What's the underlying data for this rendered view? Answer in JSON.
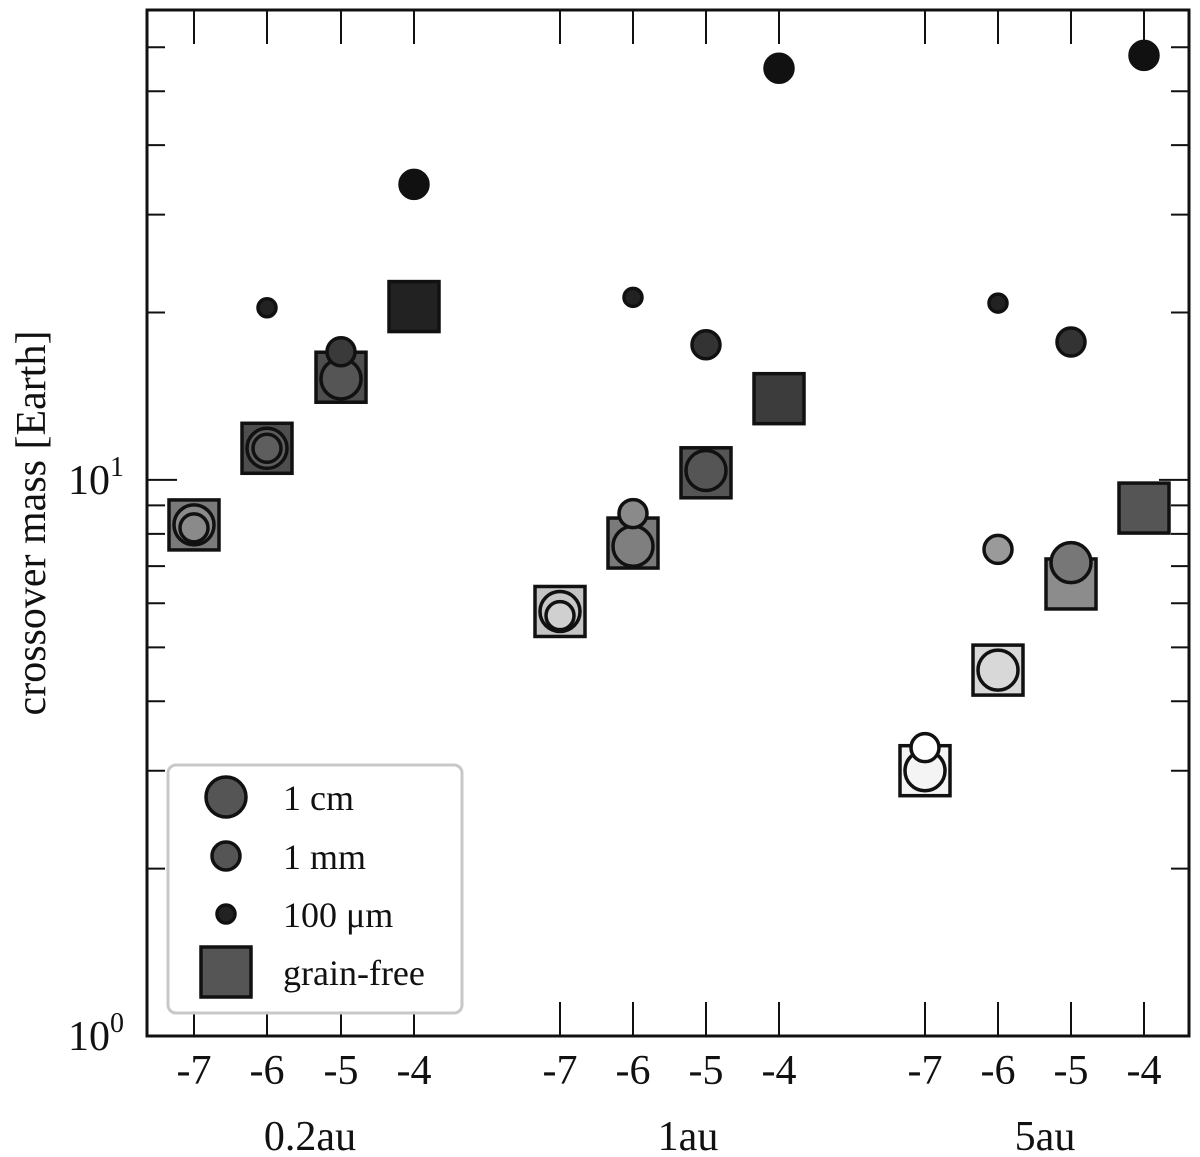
{
  "chart_data": {
    "type": "scatter",
    "ylabel": "crossover mass [Earth]",
    "yscale": "log",
    "ylim": [
      1,
      70
    ],
    "ytick_labels": [
      {
        "value": 1,
        "base": "10",
        "exp": "0"
      },
      {
        "value": 10,
        "base": "10",
        "exp": "1"
      }
    ],
    "groups": [
      {
        "label": "0.2au",
        "x_ticks": [
          "-7",
          "-6",
          "-5",
          "-4"
        ]
      },
      {
        "label": "1au",
        "x_ticks": [
          "-7",
          "-6",
          "-5",
          "-4"
        ]
      },
      {
        "label": "5au",
        "x_ticks": [
          "-7",
          "-6",
          "-5",
          "-4"
        ]
      }
    ],
    "legend": [
      {
        "key": "cm",
        "label": "1 cm",
        "marker": "circle-large"
      },
      {
        "key": "mm",
        "label": "1 mm",
        "marker": "circle-medium"
      },
      {
        "key": "um",
        "label": "100 μm",
        "marker": "circle-small"
      },
      {
        "key": "gf",
        "label": "grain-free",
        "marker": "square"
      }
    ],
    "series": [
      {
        "name": "1 cm",
        "key": "cm",
        "points": [
          {
            "group": 0,
            "x": -7,
            "y": 8.3,
            "color": "#8a8a8a"
          },
          {
            "group": 0,
            "x": -6,
            "y": 11.4,
            "color": "#5e5e5e"
          },
          {
            "group": 0,
            "x": -5,
            "y": 15.2,
            "color": "#555555"
          },
          {
            "group": 1,
            "x": -7,
            "y": 5.8,
            "color": "#c8c8c8"
          },
          {
            "group": 1,
            "x": -6,
            "y": 7.6,
            "color": "#7f7f7f"
          },
          {
            "group": 1,
            "x": -5,
            "y": 10.4,
            "color": "#555555"
          },
          {
            "group": 2,
            "x": -7,
            "y": 3.0,
            "color": "#f4f4f4"
          },
          {
            "group": 2,
            "x": -6,
            "y": 4.55,
            "color": "#d8d8d8"
          },
          {
            "group": 2,
            "x": -5,
            "y": 7.1,
            "color": "#777777"
          }
        ]
      },
      {
        "name": "1 mm",
        "key": "mm",
        "points": [
          {
            "group": 0,
            "x": -7,
            "y": 8.2,
            "color": "#8a8a8a"
          },
          {
            "group": 0,
            "x": -6,
            "y": 11.4,
            "color": "#5e5e5e"
          },
          {
            "group": 0,
            "x": -5,
            "y": 17.0,
            "color": "#3a3a3a"
          },
          {
            "group": 0,
            "x": -4,
            "y": 34.0,
            "color": "#111111"
          },
          {
            "group": 1,
            "x": -7,
            "y": 5.7,
            "color": "#d0d0d0"
          },
          {
            "group": 1,
            "x": -6,
            "y": 8.7,
            "color": "#8a8a8a"
          },
          {
            "group": 1,
            "x": -5,
            "y": 17.5,
            "color": "#333333"
          },
          {
            "group": 1,
            "x": -4,
            "y": 55.0,
            "color": "#111111"
          },
          {
            "group": 2,
            "x": -7,
            "y": 3.3,
            "color": "#ffffff"
          },
          {
            "group": 2,
            "x": -6,
            "y": 7.5,
            "color": "#9a9a9a"
          },
          {
            "group": 2,
            "x": -5,
            "y": 17.7,
            "color": "#333333"
          },
          {
            "group": 2,
            "x": -4,
            "y": 58.0,
            "color": "#111111"
          }
        ]
      },
      {
        "name": "100 μm",
        "key": "um",
        "points": [
          {
            "group": 0,
            "x": -6,
            "y": 20.4,
            "color": "#222222"
          },
          {
            "group": 1,
            "x": -6,
            "y": 21.3,
            "color": "#222222"
          },
          {
            "group": 2,
            "x": -6,
            "y": 20.8,
            "color": "#222222"
          }
        ]
      },
      {
        "name": "grain-free",
        "key": "gf",
        "points": [
          {
            "group": 0,
            "x": -7,
            "y": 8.3,
            "color": "#7a7a7a"
          },
          {
            "group": 0,
            "x": -6,
            "y": 11.4,
            "color": "#4e4e4e"
          },
          {
            "group": 0,
            "x": -5,
            "y": 15.3,
            "color": "#4e4e4e"
          },
          {
            "group": 0,
            "x": -4,
            "y": 20.5,
            "color": "#222222"
          },
          {
            "group": 1,
            "x": -7,
            "y": 5.8,
            "color": "#c4c4c4"
          },
          {
            "group": 1,
            "x": -6,
            "y": 7.7,
            "color": "#7a7a7a"
          },
          {
            "group": 1,
            "x": -5,
            "y": 10.3,
            "color": "#555555"
          },
          {
            "group": 1,
            "x": -4,
            "y": 14.0,
            "color": "#3c3c3c"
          },
          {
            "group": 2,
            "x": -7,
            "y": 3.0,
            "color": "#f4f4f4"
          },
          {
            "group": 2,
            "x": -6,
            "y": 4.55,
            "color": "#d8d8d8"
          },
          {
            "group": 2,
            "x": -5,
            "y": 6.5,
            "color": "#8c8c8c"
          },
          {
            "group": 2,
            "x": -4,
            "y": 8.9,
            "color": "#555555"
          }
        ]
      }
    ]
  }
}
